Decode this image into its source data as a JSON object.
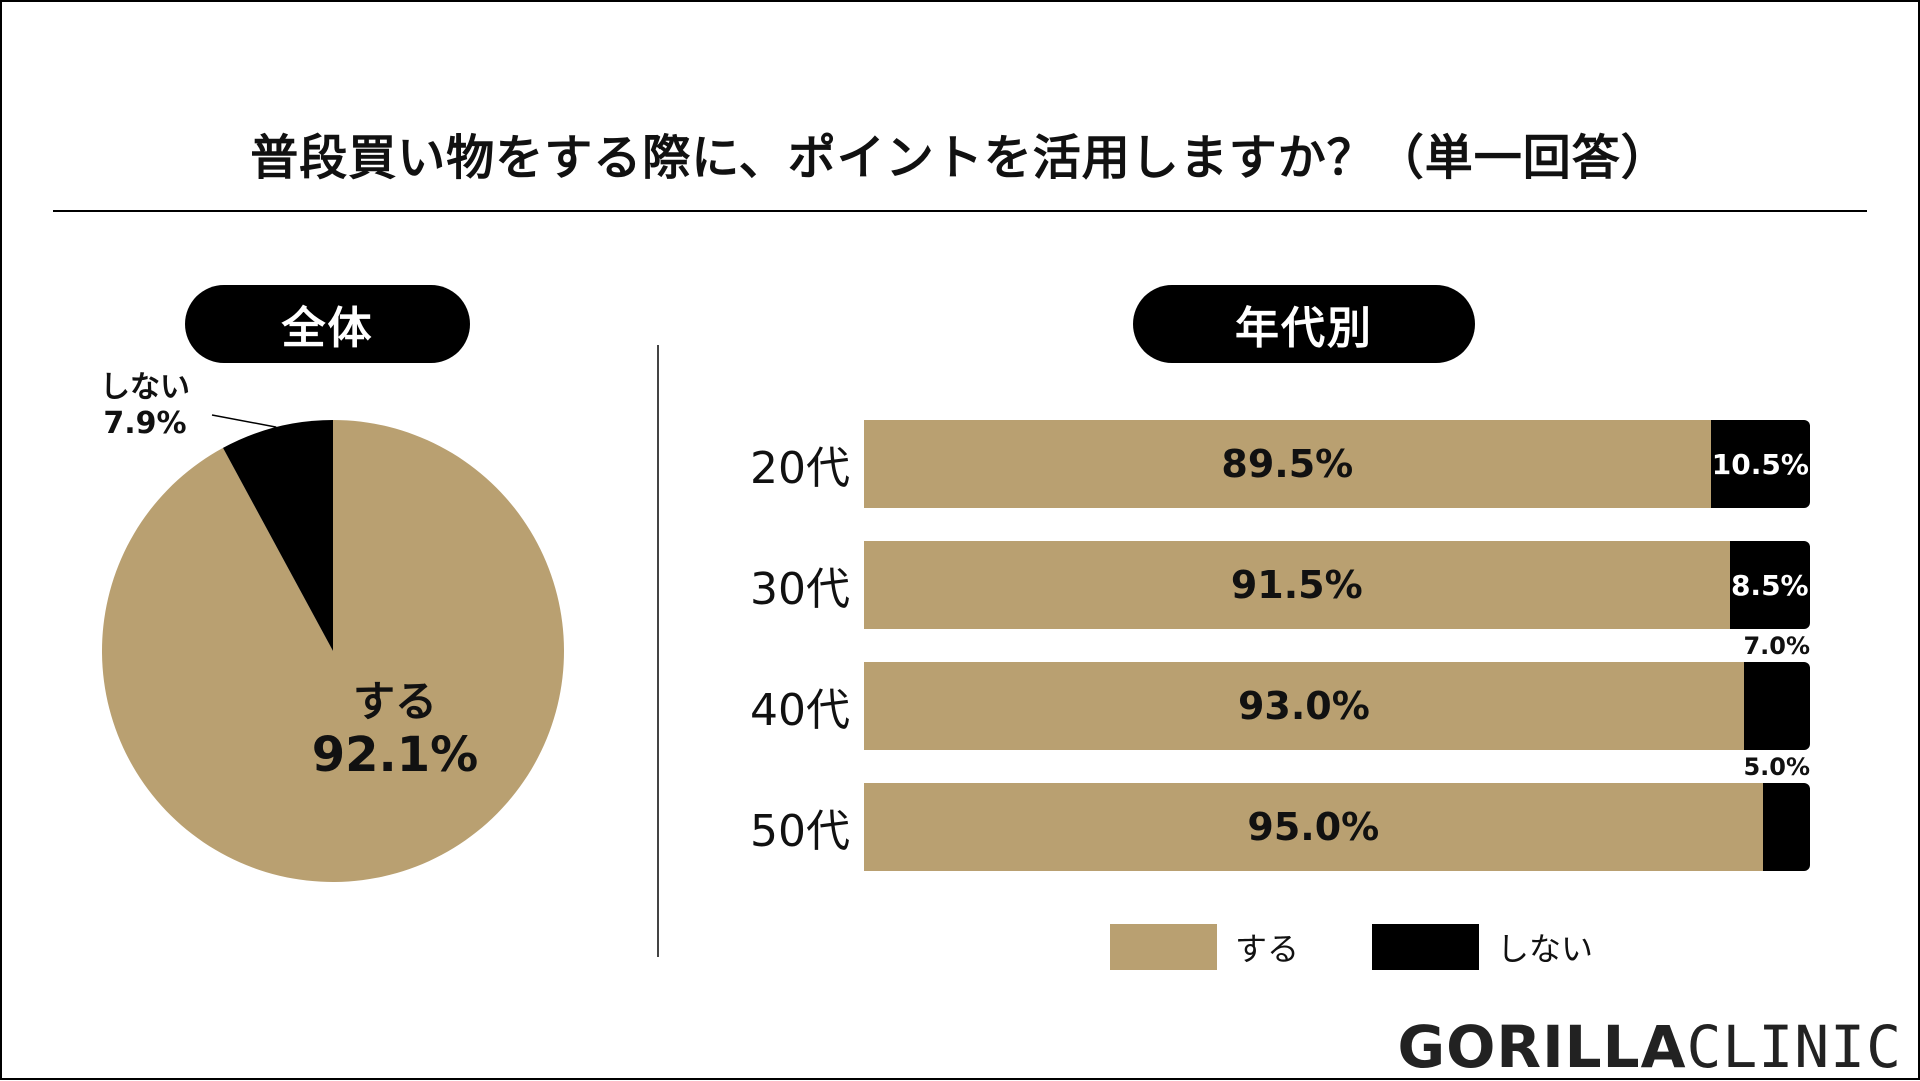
{
  "title": "普段買い物をする際に、ポイントを活用しますか？（単一回答）",
  "colors": {
    "yes": "#b9a071",
    "no": "#000000"
  },
  "chart_data": [
    {
      "type": "pie",
      "title": "全体",
      "slices": [
        {
          "label": "する",
          "value": 92.1,
          "display": "92.1%",
          "color": "#b9a071"
        },
        {
          "label": "しない",
          "value": 7.9,
          "display": "7.9%",
          "color": "#000000"
        }
      ]
    },
    {
      "type": "bar",
      "orientation": "horizontal",
      "stacked": true,
      "title": "年代別",
      "categories": [
        "20代",
        "30代",
        "40代",
        "50代"
      ],
      "series": [
        {
          "name": "する",
          "color": "#b9a071",
          "values": [
            89.5,
            91.5,
            93.0,
            95.0
          ],
          "labels": [
            "89.5%",
            "91.5%",
            "93.0%",
            "95.0%"
          ]
        },
        {
          "name": "しない",
          "color": "#000000",
          "values": [
            10.5,
            8.5,
            7.0,
            5.0
          ],
          "labels": [
            "10.5%",
            "8.5%",
            "7.0%",
            "5.0%"
          ]
        }
      ],
      "xlim": [
        0,
        100
      ],
      "legend": "bottom"
    }
  ],
  "logo": {
    "bold": "GORILLA",
    "thin": "CLINIC"
  }
}
